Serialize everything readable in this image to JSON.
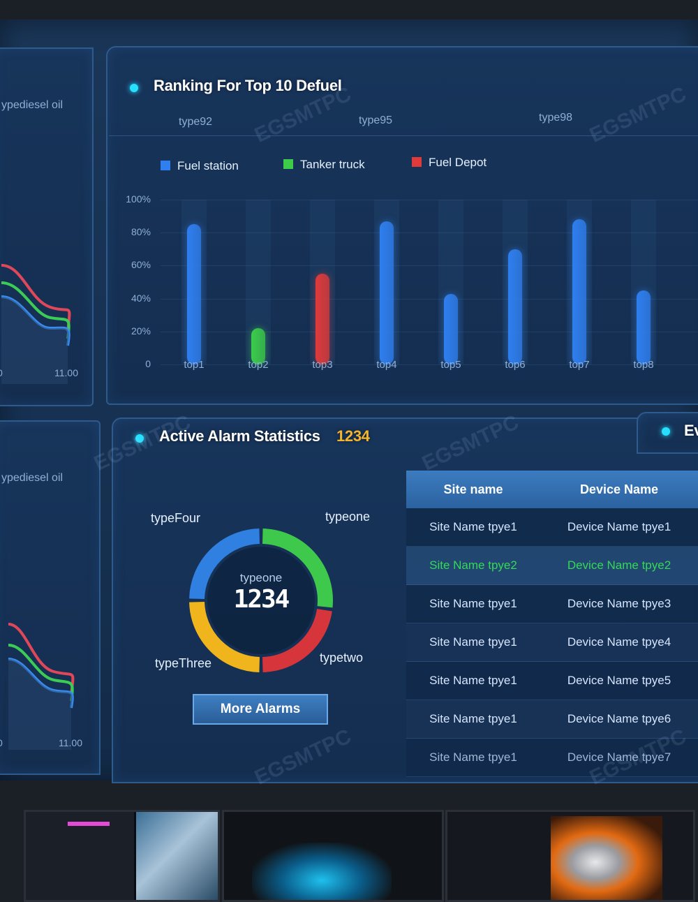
{
  "left_panels": {
    "top": {
      "label": "ypediesel oil",
      "x_start": "0",
      "x_end": "11.00"
    },
    "bottom": {
      "label": "ypediesel oil",
      "x_start": "0",
      "x_end": "11.00"
    }
  },
  "ranking": {
    "title": "Ranking For Top 10 Defuel",
    "tabs": [
      "type92",
      "type95",
      "type98"
    ],
    "legend": [
      {
        "name": "Fuel station",
        "color": "#2f7ff0"
      },
      {
        "name": "Tanker truck",
        "color": "#3ccc4a"
      },
      {
        "name": "Fuel Depot",
        "color": "#e03a3a"
      }
    ]
  },
  "chart_data": {
    "type": "bar",
    "title": "Ranking For Top 10 Defuel",
    "categories": [
      "top1",
      "top2",
      "top3",
      "top4",
      "top5",
      "top6",
      "top7",
      "top8"
    ],
    "series": [
      {
        "name": "Fuel station",
        "color": "#2f7ff0",
        "values": [
          85,
          null,
          null,
          87,
          null,
          70,
          88,
          45
        ]
      },
      {
        "name": "Tanker truck",
        "color": "#3ccc4a",
        "values": [
          null,
          22,
          null,
          null,
          null,
          null,
          null,
          null
        ]
      },
      {
        "name": "Fuel Depot",
        "color": "#e03a3a",
        "values": [
          null,
          null,
          55,
          null,
          null,
          null,
          null,
          null
        ]
      },
      {
        "name": "",
        "color": "#2f7ff0",
        "values": [
          null,
          null,
          null,
          null,
          43,
          null,
          null,
          null
        ]
      }
    ],
    "yticks": [
      "100%",
      "80%",
      "60%",
      "40%",
      "20%",
      "0"
    ],
    "ylim": [
      0,
      100
    ],
    "legend_position": "top-left"
  },
  "alarms": {
    "title": "Active Alarm Statistics",
    "count": "1234",
    "donut": {
      "center_label": "typeone",
      "center_value": "1234",
      "segments": [
        {
          "name": "typeone",
          "color": "#3fc94c",
          "fraction": 0.27
        },
        {
          "name": "typetwo",
          "color": "#d6353c",
          "fraction": 0.23
        },
        {
          "name": "typeThree",
          "color": "#f0b51c",
          "fraction": 0.25
        },
        {
          "name": "typeFour",
          "color": "#2f80e0",
          "fraction": 0.25
        }
      ]
    },
    "more_button": "More Alarms",
    "table": {
      "headers": [
        "Site name",
        "Device Name"
      ],
      "rows": [
        [
          "Site Name tpye1",
          "Device Name tpye1"
        ],
        [
          "Site Name tpye2",
          "Device Name tpye2"
        ],
        [
          "Site Name tpye1",
          "Device Name tpye3"
        ],
        [
          "Site Name tpye1",
          "Device Name tpye4"
        ],
        [
          "Site Name tpye1",
          "Device Name tpye5"
        ],
        [
          "Site Name tpye1",
          "Device Name tpye6"
        ],
        [
          "Site Name tpye1",
          "Device Name tpye7"
        ]
      ],
      "highlight_row": 1
    }
  },
  "right_peek": {
    "title": "Ev"
  },
  "watermark": "EGSMTPC"
}
